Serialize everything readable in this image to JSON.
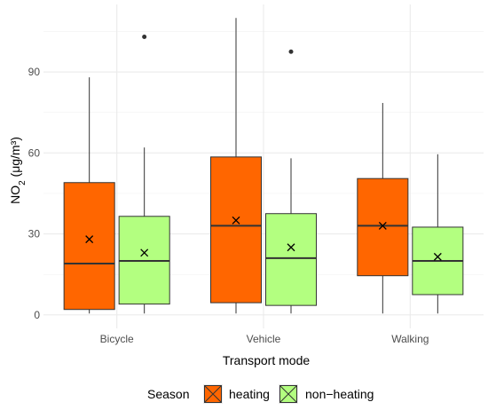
{
  "chart_data": {
    "type": "boxplot",
    "xlabel": "Transport mode",
    "ylabel_main": "NO",
    "ylabel_sub": "2",
    "ylabel_unit": " (μg/m³)",
    "categories": [
      "Bicycle",
      "Vehicle",
      "Walking"
    ],
    "ylim": [
      -5,
      115
    ],
    "yticks": [
      0,
      30,
      60,
      90
    ],
    "grid": true,
    "legend": {
      "title": "Season",
      "placement": "bottom",
      "entries": [
        {
          "label": "heating",
          "color": "#FF6600"
        },
        {
          "label": "non−heating",
          "color": "#B3FF80"
        }
      ]
    },
    "series": [
      {
        "name": "heating",
        "color": "#FF6600",
        "boxes": [
          {
            "category": "Bicycle",
            "min": 0.5,
            "q1": 2,
            "median": 19,
            "q3": 49,
            "max": 88,
            "mean": 28,
            "outliers": []
          },
          {
            "category": "Vehicle",
            "min": 0.5,
            "q1": 4.5,
            "median": 33,
            "q3": 58.5,
            "max": 110,
            "mean": 35,
            "outliers": []
          },
          {
            "category": "Walking",
            "min": 0.5,
            "q1": 14.5,
            "median": 33,
            "q3": 50.5,
            "max": 78.5,
            "mean": 33,
            "outliers": []
          }
        ]
      },
      {
        "name": "non−heating",
        "color": "#B3FF80",
        "boxes": [
          {
            "category": "Bicycle",
            "min": 0.5,
            "q1": 4,
            "median": 20,
            "q3": 36.5,
            "max": 62,
            "mean": 23,
            "outliers": [
              103
            ]
          },
          {
            "category": "Vehicle",
            "min": 0.5,
            "q1": 3.5,
            "median": 21,
            "q3": 37.5,
            "max": 58,
            "mean": 25,
            "outliers": [
              97.5
            ]
          },
          {
            "category": "Walking",
            "min": 0.5,
            "q1": 7.5,
            "median": 20,
            "q3": 32.5,
            "max": 59.5,
            "mean": 21.5,
            "outliers": []
          }
        ]
      }
    ]
  }
}
